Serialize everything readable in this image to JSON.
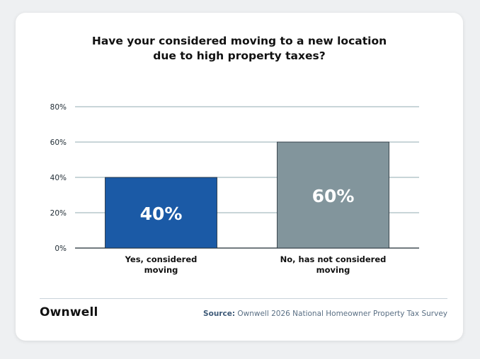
{
  "brand": {
    "logo_text": "Ownwell",
    "card_background": "#ffffff",
    "page_background": "#eef0f2"
  },
  "footer": {
    "source_label": "Source:",
    "source_text": "Ownwell 2026 National Homeowner Property Tax Survey"
  },
  "chart_data": {
    "type": "bar",
    "title_lines": [
      "Have your considered moving to a new location",
      "due to high property taxes?"
    ],
    "categories": [
      [
        "Yes, considered",
        "moving"
      ],
      [
        "No, has not considered",
        "moving"
      ]
    ],
    "values": [
      40,
      60
    ],
    "data_labels": [
      "40%",
      "60%"
    ],
    "bar_colors": [
      "#1b5aa6",
      "#82959c"
    ],
    "ylim": [
      0,
      80
    ],
    "yticks": [
      0,
      20,
      40,
      60,
      80
    ],
    "ytick_labels": [
      "0%",
      "20%",
      "40%",
      "60%",
      "80%"
    ],
    "grid": true,
    "grid_color": "#6e8f98",
    "legend": "none"
  }
}
